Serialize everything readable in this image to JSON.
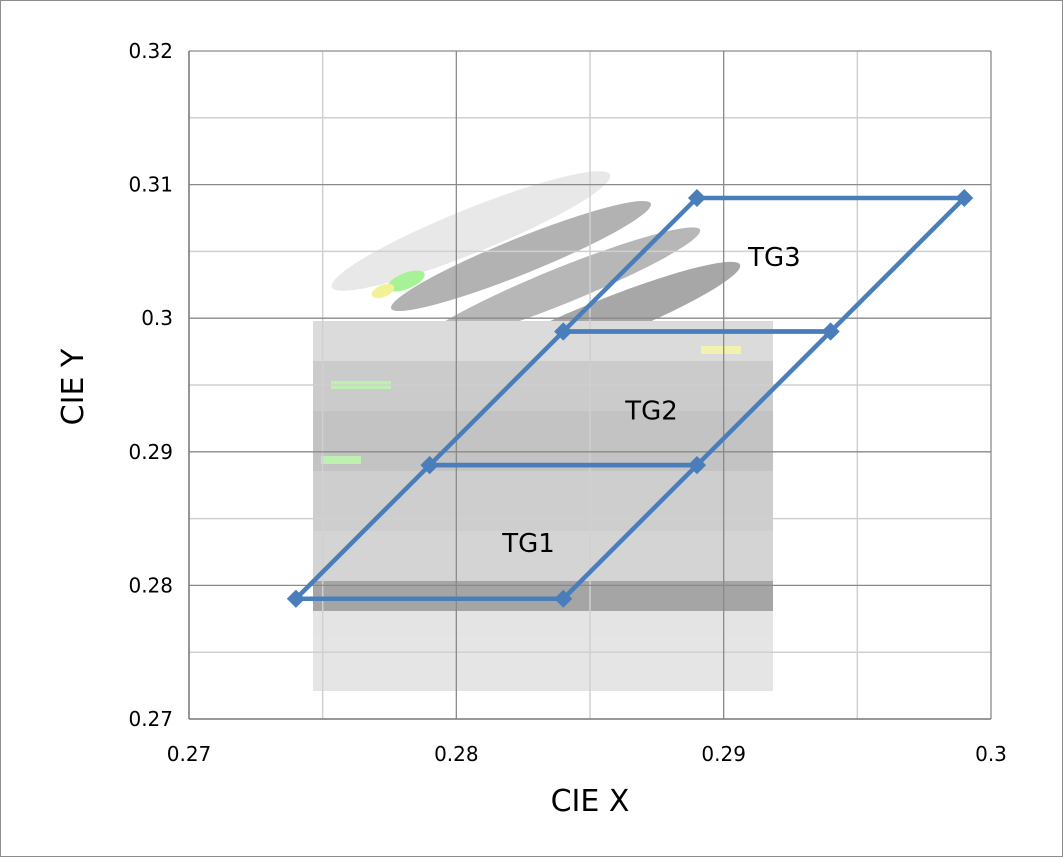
{
  "chart_data": {
    "type": "scatter",
    "title": "",
    "xlabel": "CIE  X",
    "ylabel": "CIE  Y",
    "xlim": [
      0.27,
      0.3
    ],
    "ylim": [
      0.27,
      0.32
    ],
    "x_major_ticks": [
      0.27,
      0.28,
      0.29,
      0.3
    ],
    "x_tick_labels": [
      "0.27",
      "0.28",
      "0.29",
      "0.3"
    ],
    "y_major_ticks": [
      0.27,
      0.28,
      0.29,
      0.3,
      0.31,
      0.32
    ],
    "y_tick_labels": [
      "0.27",
      "0.28",
      "0.29",
      "0.3",
      "0.31",
      "0.32"
    ],
    "grid": true,
    "legend": "none",
    "series_color": "#4a7ebb",
    "series": [
      {
        "x": [
          0.274,
          0.284,
          0.289,
          0.279,
          0.274
        ],
        "y": [
          0.279,
          0.279,
          0.289,
          0.289,
          0.279
        ]
      },
      {
        "x": [
          0.279,
          0.289,
          0.294,
          0.284,
          0.279
        ],
        "y": [
          0.289,
          0.289,
          0.299,
          0.299,
          0.289
        ]
      },
      {
        "x": [
          0.284,
          0.294,
          0.299,
          0.289,
          0.284
        ],
        "y": [
          0.299,
          0.299,
          0.309,
          0.309,
          0.299
        ]
      }
    ],
    "annotations": [
      {
        "text": "TG1",
        "x": 0.2827,
        "y": 0.2825
      },
      {
        "text": "TG2",
        "x": 0.2873,
        "y": 0.2924
      },
      {
        "text": "TG3",
        "x": 0.2919,
        "y": 0.3039
      }
    ]
  }
}
